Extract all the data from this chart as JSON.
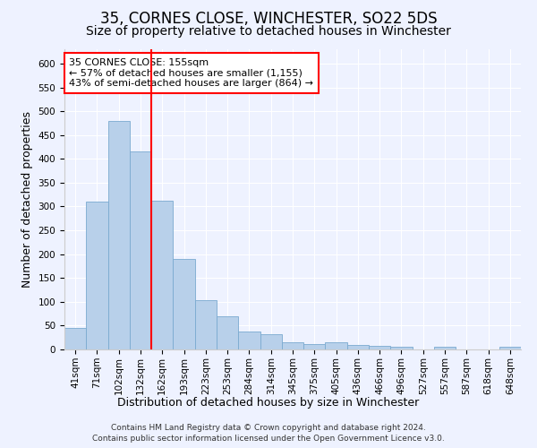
{
  "title": "35, CORNES CLOSE, WINCHESTER, SO22 5DS",
  "subtitle": "Size of property relative to detached houses in Winchester",
  "xlabel": "Distribution of detached houses by size in Winchester",
  "ylabel": "Number of detached properties",
  "bar_color": "#b8d0ea",
  "bar_edge_color": "#7aaad0",
  "categories": [
    "41sqm",
    "71sqm",
    "102sqm",
    "132sqm",
    "162sqm",
    "193sqm",
    "223sqm",
    "253sqm",
    "284sqm",
    "314sqm",
    "345sqm",
    "375sqm",
    "405sqm",
    "436sqm",
    "466sqm",
    "496sqm",
    "527sqm",
    "557sqm",
    "587sqm",
    "618sqm",
    "648sqm"
  ],
  "values": [
    46,
    311,
    480,
    415,
    313,
    190,
    103,
    70,
    38,
    32,
    15,
    12,
    15,
    10,
    8,
    5,
    0,
    5,
    0,
    0,
    5
  ],
  "ylim": [
    0,
    630
  ],
  "yticks": [
    0,
    50,
    100,
    150,
    200,
    250,
    300,
    350,
    400,
    450,
    500,
    550,
    600
  ],
  "redline_x": 3.5,
  "annotation_title": "35 CORNES CLOSE: 155sqm",
  "annotation_line1": "← 57% of detached houses are smaller (1,155)",
  "annotation_line2": "43% of semi-detached houses are larger (864) →",
  "footer1": "Contains HM Land Registry data © Crown copyright and database right 2024.",
  "footer2": "Contains public sector information licensed under the Open Government Licence v3.0.",
  "title_fontsize": 12,
  "subtitle_fontsize": 10,
  "axis_label_fontsize": 9,
  "tick_fontsize": 7.5,
  "background_color": "#eef2ff",
  "plot_bg_color": "#eef2ff"
}
